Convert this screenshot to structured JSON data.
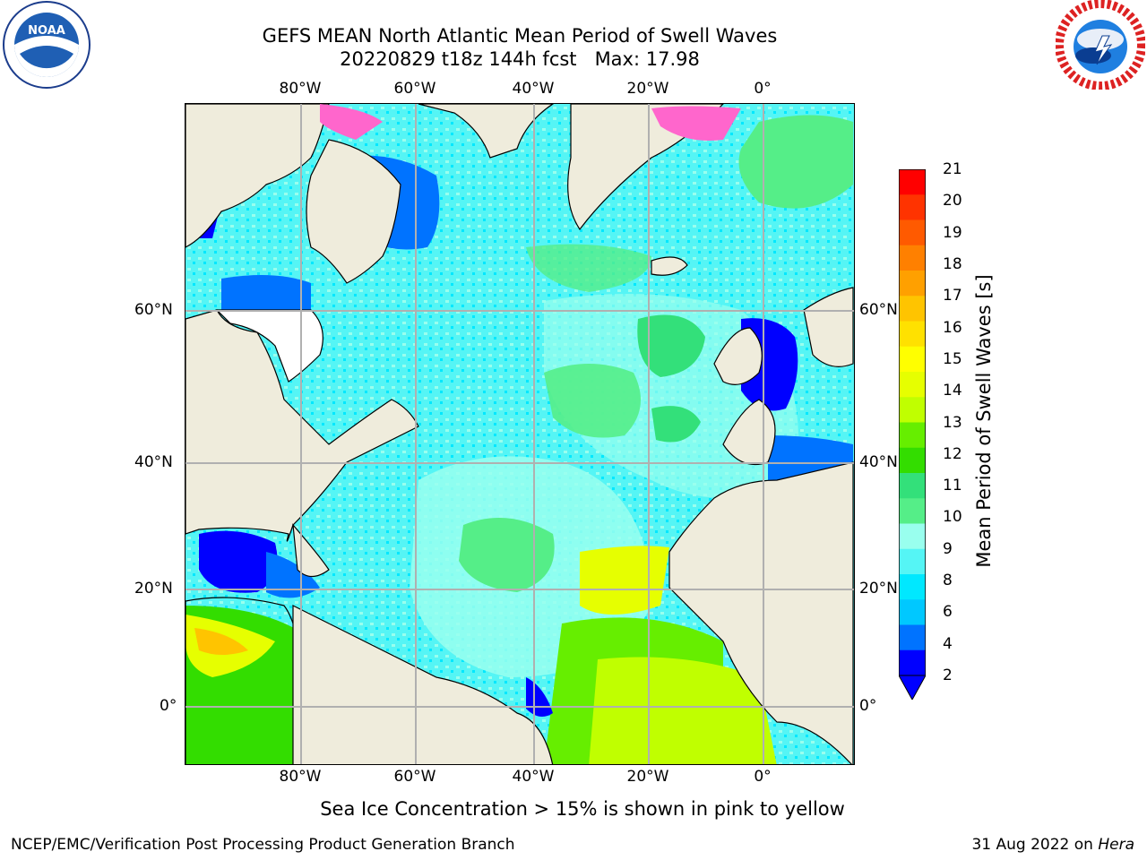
{
  "header": {
    "title_line1": "GEFS MEAN North Atlantic Mean Period of Swell Waves",
    "title_line2": "20220829 t18z 144h fcst   Max: 17.98"
  },
  "logos": {
    "left": {
      "name": "noaa-logo",
      "text": "NOAA"
    },
    "right": {
      "name": "nws-logo",
      "text": "NATIONAL WEATHER SERVICE"
    }
  },
  "map": {
    "lon_ticks_top": [
      "80°W",
      "60°W",
      "40°W",
      "20°W",
      "0°"
    ],
    "lon_ticks_bottom": [
      "80°W",
      "60°W",
      "40°W",
      "20°W",
      "0°"
    ],
    "lat_ticks_left": [
      "60°N",
      "40°N",
      "20°N",
      "0°"
    ],
    "lat_ticks_right": [
      "60°N",
      "40°N",
      "20°N",
      "0°"
    ],
    "extent": {
      "lon_min": -100,
      "lon_max": 15,
      "lat_min": -8,
      "lat_max": 80
    },
    "grid": true
  },
  "colorbar": {
    "label": "Mean Period of Swell Waves [s]",
    "ticks": [
      "21",
      "20",
      "19",
      "18",
      "17",
      "16",
      "15",
      "14",
      "13",
      "12",
      "11",
      "10",
      "9",
      "8",
      "6",
      "4",
      "2"
    ],
    "colors": [
      "#ff0000",
      "#ff3300",
      "#ff5a00",
      "#ff8000",
      "#ffa000",
      "#ffc400",
      "#ffe100",
      "#ffff00",
      "#e6ff00",
      "#c0ff00",
      "#66ee00",
      "#33dd00",
      "#33e07a",
      "#55ee88",
      "#99ffee",
      "#55f5f5",
      "#00e8ff",
      "#00c8ff",
      "#0073ff",
      "#0000ff"
    ],
    "extend_color": "#0000ff"
  },
  "footnote": "Sea Ice Concentration > 15% is shown in pink to yellow",
  "credits": {
    "left": "NCEP/EMC/Verification Post Processing Product Generation Branch",
    "right_date": "31 Aug 2022 on ",
    "right_machine": "Hera"
  }
}
